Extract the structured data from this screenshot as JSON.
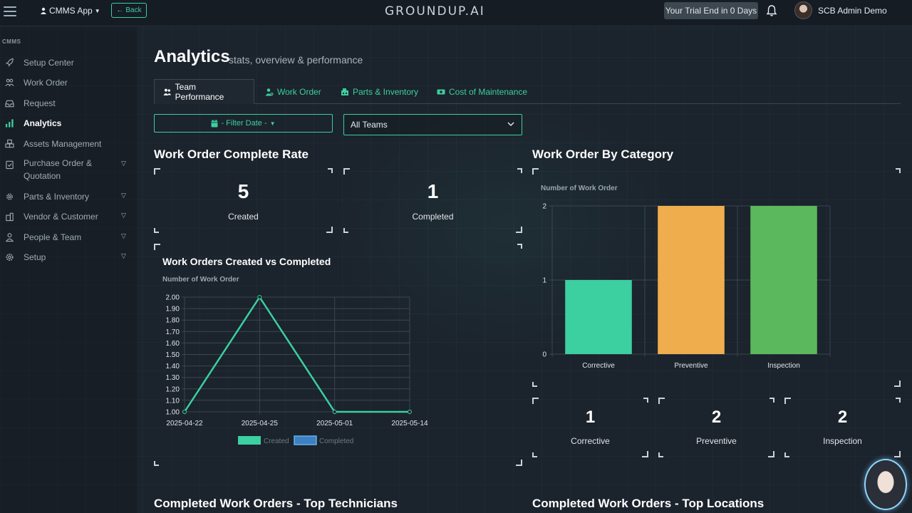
{
  "topbar": {
    "app_switch": "CMMS App",
    "back": "Back",
    "logo": "GROUNDUP.AI",
    "trial": "Your Trial End in 0 Days",
    "user": "SCB Admin Demo"
  },
  "sidebar": {
    "header": "CMMS",
    "items": [
      {
        "label": "Setup Center",
        "icon": "rocket-icon"
      },
      {
        "label": "Work Order",
        "icon": "users-icon"
      },
      {
        "label": "Request",
        "icon": "inbox-icon"
      },
      {
        "label": "Analytics",
        "icon": "bar-chart-icon"
      },
      {
        "label": "Assets Management",
        "icon": "boxes-icon"
      },
      {
        "label": "Purchase Order &\nQuotation",
        "icon": "clipboard-icon"
      },
      {
        "label": "Parts & Inventory",
        "icon": "cog-icon"
      },
      {
        "label": "Vendor & Customer",
        "icon": "building-icon"
      },
      {
        "label": "People & Team",
        "icon": "person-icon"
      },
      {
        "label": "Setup",
        "icon": "gear-icon"
      }
    ]
  },
  "page": {
    "title": "Analytics",
    "subtitle": "stats, overview & performance"
  },
  "tabs": [
    {
      "label": "Team Performance"
    },
    {
      "label": "Work Order"
    },
    {
      "label": "Parts & Inventory"
    },
    {
      "label": "Cost of Maintenance"
    }
  ],
  "filters": {
    "date": "- Filter Date -",
    "team": "All Teams"
  },
  "complete_rate": {
    "title": "Work Order Complete Rate",
    "created_value": "5",
    "created_label": "Created",
    "completed_value": "1",
    "completed_label": "Completed"
  },
  "line_chart": {
    "title": "Work Orders Created vs Completed",
    "ylabel": "Number of Work Order"
  },
  "category": {
    "title": "Work Order By Category",
    "ylabel": "Number of Work Order",
    "stats": [
      {
        "value": "1",
        "label": "Corrective"
      },
      {
        "value": "2",
        "label": "Preventive"
      },
      {
        "value": "2",
        "label": "Inspection"
      }
    ]
  },
  "bottom": {
    "left": "Completed Work Orders - Top Technicians",
    "right": "Completed Work Orders - Top Locations"
  },
  "colors": {
    "accent": "#3ccfa0",
    "preventive": "#f0ad4e",
    "inspection": "#5cb85c",
    "completed": "#3b82c4"
  },
  "chart_data": [
    {
      "type": "line",
      "title": "Work Orders Created vs Completed",
      "ylabel": "Number of Work Order",
      "x": [
        "2025-04-22",
        "2025-04-25",
        "2025-05-01",
        "2025-05-14"
      ],
      "series": [
        {
          "name": "Created",
          "values": [
            1,
            2,
            1,
            1
          ]
        },
        {
          "name": "Completed",
          "values": [
            null,
            null,
            null,
            null
          ]
        }
      ],
      "yticks": [
        "2.00",
        "1.90",
        "1.80",
        "1.70",
        "1.60",
        "1.50",
        "1.40",
        "1.30",
        "1.20",
        "1.10",
        "1.00"
      ],
      "ylim": [
        1,
        2
      ],
      "legend": "bottom",
      "grid": true
    },
    {
      "type": "bar",
      "ylabel": "Number of Work Order",
      "categories": [
        "Corrective",
        "Preventive",
        "Inspection"
      ],
      "values": [
        1,
        2,
        2
      ],
      "yticks": [
        "2",
        "1",
        "0"
      ],
      "ylim": [
        0,
        2
      ],
      "grid": true
    }
  ]
}
